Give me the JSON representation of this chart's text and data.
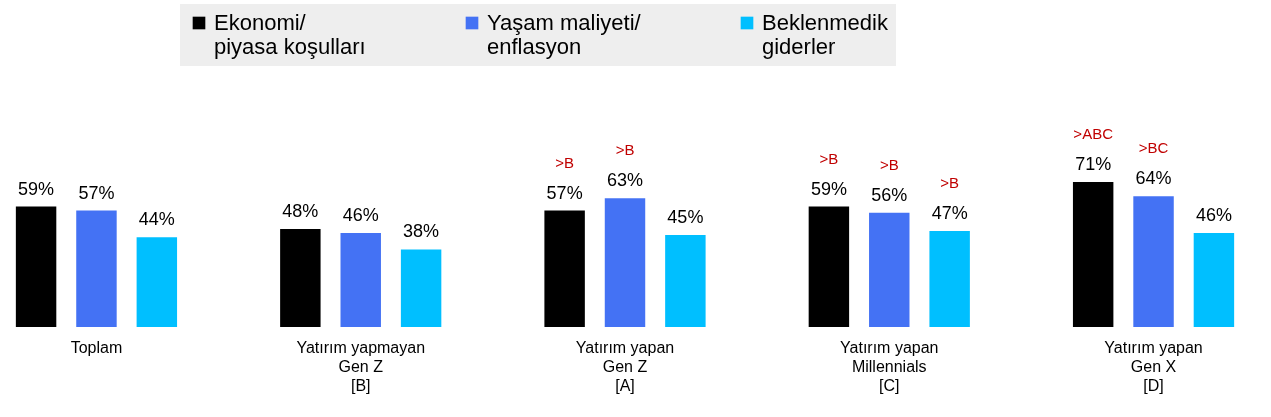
{
  "chart_data": {
    "type": "bar",
    "categories": [
      "Toplam",
      "Yatırım yapmayan\nGen Z\n[B]",
      "Yatırım yapan\nGen Z\n[A]",
      "Yatırım yapan\nMillennials\n[C]",
      "Yatırım yapan\nGen X\n[D]"
    ],
    "series": [
      {
        "name": "Ekonomi/\npiyasa koşulları",
        "color": "#000000",
        "values": [
          59,
          48,
          57,
          59,
          71
        ],
        "value_labels": [
          "59%",
          "48%",
          ">B\n57%",
          ">B\n59%",
          ">ABC\n71%"
        ]
      },
      {
        "name": "Yaşam maliyeti/\nenflasyon",
        "color": "#4472f4",
        "values": [
          57,
          46,
          63,
          56,
          64
        ],
        "value_labels": [
          "57%",
          "46%",
          ">B\n63%",
          ">B\n56%",
          ">BC\n64%"
        ]
      },
      {
        "name": "Beklenmedik\ngiderler",
        "color": "#00bfff",
        "values": [
          44,
          38,
          45,
          47,
          46
        ],
        "value_labels": [
          "44%",
          "38%",
          "45%",
          ">B\n47%",
          "46%"
        ]
      }
    ],
    "legend": "top"
  }
}
